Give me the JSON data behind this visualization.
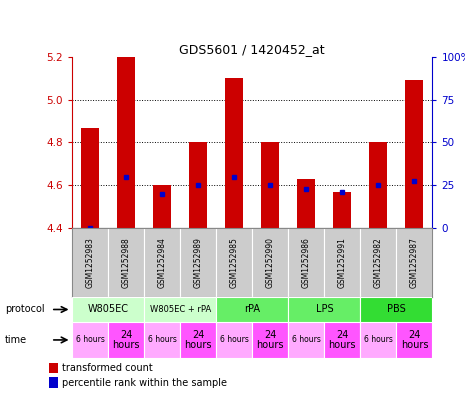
{
  "title": "GDS5601 / 1420452_at",
  "samples": [
    "GSM1252983",
    "GSM1252988",
    "GSM1252984",
    "GSM1252989",
    "GSM1252985",
    "GSM1252990",
    "GSM1252986",
    "GSM1252991",
    "GSM1252982",
    "GSM1252987"
  ],
  "red_values": [
    4.87,
    5.2,
    4.6,
    4.8,
    5.1,
    4.8,
    4.63,
    4.57,
    4.8,
    5.09
  ],
  "blue_values": [
    4.4,
    4.64,
    4.56,
    4.6,
    4.64,
    4.6,
    4.58,
    4.57,
    4.6,
    4.62
  ],
  "ylim": [
    4.4,
    5.2
  ],
  "yticks_left": [
    4.4,
    4.6,
    4.8,
    5.0,
    5.2
  ],
  "yticks_right": [
    0,
    25,
    50,
    75,
    100
  ],
  "protocols": [
    {
      "label": "W805EC",
      "start": 0,
      "end": 2,
      "color": "#ccffcc"
    },
    {
      "label": "W805EC + rPA",
      "start": 2,
      "end": 4,
      "color": "#ccffcc"
    },
    {
      "label": "rPA",
      "start": 4,
      "end": 6,
      "color": "#66ee66"
    },
    {
      "label": "LPS",
      "start": 6,
      "end": 8,
      "color": "#66ee66"
    },
    {
      "label": "PBS",
      "start": 8,
      "end": 10,
      "color": "#33dd33"
    }
  ],
  "times": [
    {
      "label": "6 hours",
      "start": 0,
      "end": 1,
      "color": "#ffaaff"
    },
    {
      "label": "24\nhours",
      "start": 1,
      "end": 2,
      "color": "#ff55ff"
    },
    {
      "label": "6 hours",
      "start": 2,
      "end": 3,
      "color": "#ffaaff"
    },
    {
      "label": "24\nhours",
      "start": 3,
      "end": 4,
      "color": "#ff55ff"
    },
    {
      "label": "6 hours",
      "start": 4,
      "end": 5,
      "color": "#ffaaff"
    },
    {
      "label": "24\nhours",
      "start": 5,
      "end": 6,
      "color": "#ff55ff"
    },
    {
      "label": "6 hours",
      "start": 6,
      "end": 7,
      "color": "#ffaaff"
    },
    {
      "label": "24\nhours",
      "start": 7,
      "end": 8,
      "color": "#ff55ff"
    },
    {
      "label": "6 hours",
      "start": 8,
      "end": 9,
      "color": "#ffaaff"
    },
    {
      "label": "24\nhours",
      "start": 9,
      "end": 10,
      "color": "#ff55ff"
    }
  ],
  "bar_color": "#cc0000",
  "dot_color": "#0000cc",
  "background_color": "#ffffff",
  "left_axis_color": "#cc0000",
  "right_axis_color": "#0000cc",
  "sample_bg_color": "#cccccc",
  "border_color": "#888888"
}
